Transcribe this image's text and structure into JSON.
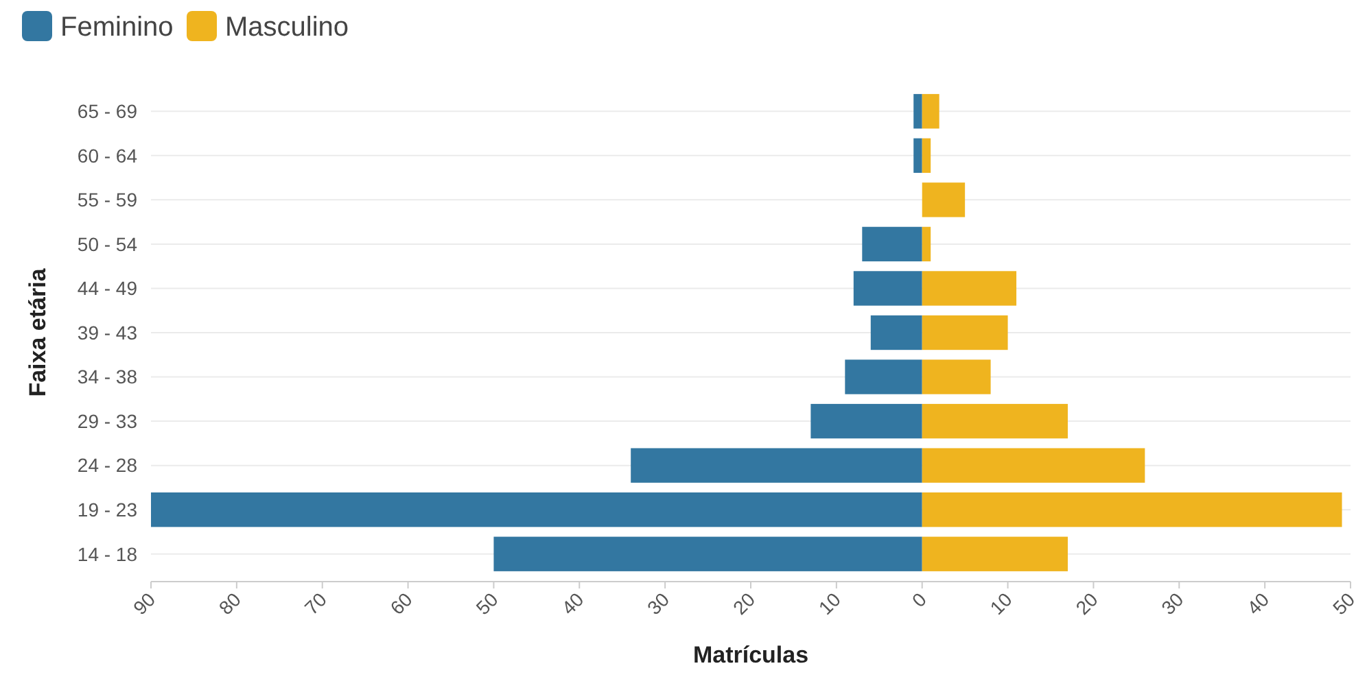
{
  "chart_data": {
    "type": "bar",
    "orientation": "horizontal",
    "stacked": true,
    "xlabel": "Matrículas",
    "ylabel": "Faixa etária",
    "categories": [
      "65 - 69",
      "60 - 64",
      "55 - 59",
      "50 - 54",
      "44 - 49",
      "39 - 43",
      "34 - 38",
      "29 - 33",
      "24 - 28",
      "19 - 23",
      "14 - 18"
    ],
    "series": [
      {
        "name": "Feminino",
        "color": "#3377a1",
        "values": [
          -1,
          -1,
          0,
          -7,
          -8,
          -6,
          -9,
          -13,
          -34,
          -90,
          -50
        ]
      },
      {
        "name": "Masculino",
        "color": "#efb41f",
        "values": [
          2,
          1,
          5,
          1,
          11,
          10,
          8,
          17,
          26,
          49,
          17
        ]
      }
    ],
    "xlim": [
      -90,
      50
    ],
    "xticks": [
      {
        "value": -90,
        "label": "90"
      },
      {
        "value": -80,
        "label": "80"
      },
      {
        "value": -70,
        "label": "70"
      },
      {
        "value": -60,
        "label": "60"
      },
      {
        "value": -50,
        "label": "50"
      },
      {
        "value": -40,
        "label": "40"
      },
      {
        "value": -30,
        "label": "30"
      },
      {
        "value": -20,
        "label": "20"
      },
      {
        "value": -10,
        "label": "10"
      },
      0,
      10,
      20,
      30,
      40,
      50
    ],
    "grid": "y",
    "legend": "top left"
  }
}
